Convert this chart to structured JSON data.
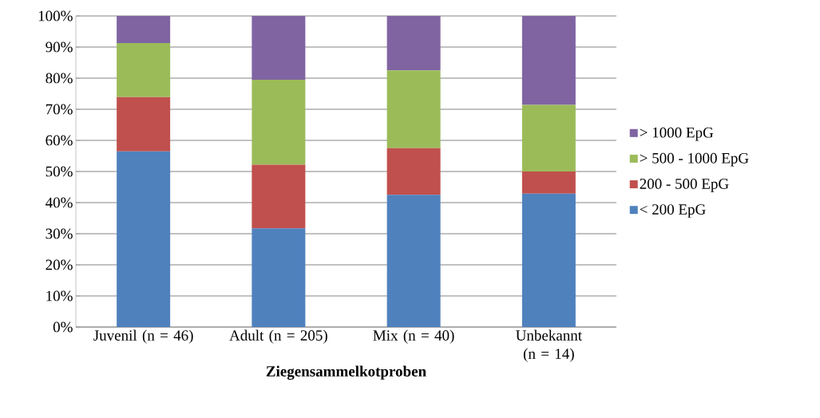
{
  "chart_data": {
    "type": "bar",
    "stacked": true,
    "xlabel": "Ziegensammelkotproben",
    "categories": [
      "Juvenil (n = 46)",
      "Adult (n = 205)",
      "Mix (n = 40)",
      "Unbekannt (n = 14)"
    ],
    "series": [
      {
        "name": "< 200 EpG",
        "color": "#4f81bd",
        "values": [
          56.5,
          31.7,
          42.5,
          42.9
        ]
      },
      {
        "name": "200 - 500 EpG",
        "color": "#c0504d",
        "values": [
          17.4,
          20.5,
          15.0,
          7.1
        ]
      },
      {
        "name": "> 500 - 1000 EpG",
        "color": "#9bbb59",
        "values": [
          17.4,
          27.3,
          25.0,
          21.4
        ]
      },
      {
        "name": "> 1000 EpG",
        "color": "#8064a2",
        "values": [
          8.7,
          20.5,
          17.5,
          28.6
        ]
      }
    ],
    "ylim": [
      0,
      100
    ],
    "yticks": [
      {
        "value": 0,
        "label": "0%"
      },
      {
        "value": 10,
        "label": "10%"
      },
      {
        "value": 20,
        "label": "20%"
      },
      {
        "value": 30,
        "label": "30%"
      },
      {
        "value": 40,
        "label": "40%"
      },
      {
        "value": 50,
        "label": "50%"
      },
      {
        "value": 60,
        "label": "60%"
      },
      {
        "value": 70,
        "label": "70%"
      },
      {
        "value": 80,
        "label": "80%"
      },
      {
        "value": 90,
        "label": "90%"
      },
      {
        "value": 100,
        "label": "100%"
      }
    ],
    "grid": "y",
    "legend": "right"
  }
}
